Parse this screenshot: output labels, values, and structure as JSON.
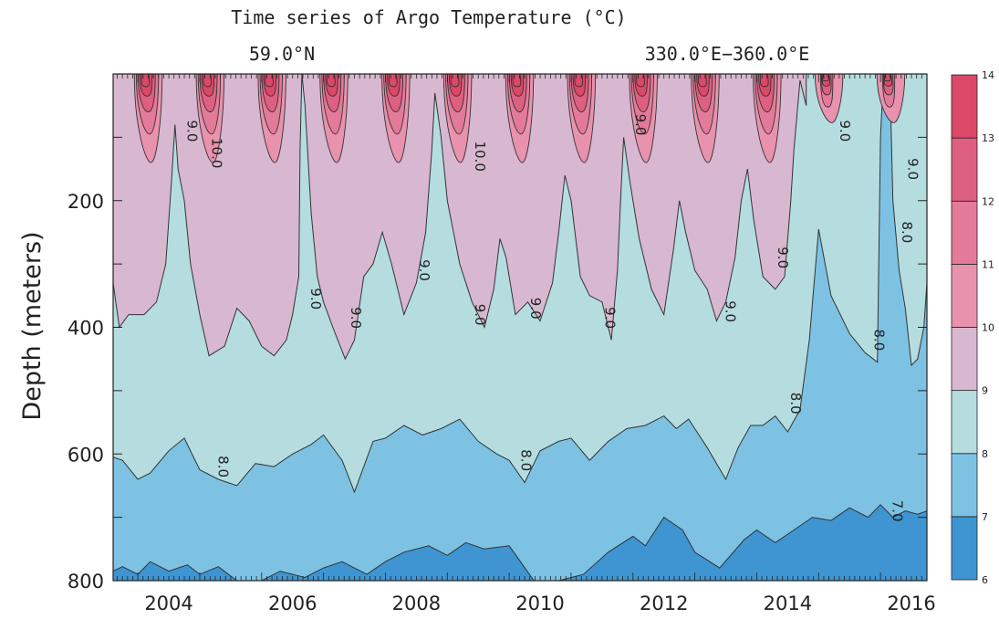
{
  "chart_data": {
    "type": "heatmap",
    "title": "Time series of Argo Temperature (°C)",
    "subtitle_left": "59.0°N",
    "subtitle_right": "330.0°E−360.0°E",
    "ylabel": "Depth (meters)",
    "xlabel": "",
    "xlim": [
      2003.6,
      2016.75
    ],
    "ylim": [
      800,
      0
    ],
    "y_inverted": true,
    "x_ticks": [
      "2004",
      "2006",
      "2008",
      "2010",
      "2012",
      "2014",
      "2016"
    ],
    "y_ticks": [
      "200",
      "400",
      "600",
      "800"
    ],
    "colorbar": {
      "levels": [
        6,
        7,
        8,
        9,
        10,
        11,
        12,
        13,
        14
      ],
      "labels": [
        "6",
        "7",
        "8",
        "9",
        "10",
        "11",
        "12",
        "13",
        "14"
      ],
      "colors": [
        "#3e95d1",
        "#7dc2e3",
        "#b5dde0",
        "#d7b8d0",
        "#e892ad",
        "#e37a99",
        "#df5f81",
        "#db4868"
      ]
    },
    "boundaries": {
      "deep_7C": [
        [
          2003.6,
          785
        ],
        [
          2003.75,
          778
        ],
        [
          2004.0,
          790
        ],
        [
          2004.2,
          770
        ],
        [
          2004.5,
          785
        ],
        [
          2004.8,
          775
        ],
        [
          2005.0,
          790
        ],
        [
          2005.3,
          778
        ],
        [
          2005.6,
          800
        ],
        [
          2006.0,
          800
        ],
        [
          2006.3,
          785
        ],
        [
          2006.7,
          795
        ],
        [
          2007.0,
          780
        ],
        [
          2007.3,
          770
        ],
        [
          2007.7,
          790
        ],
        [
          2008.0,
          770
        ],
        [
          2008.3,
          755
        ],
        [
          2008.7,
          745
        ],
        [
          2009.0,
          760
        ],
        [
          2009.3,
          740
        ],
        [
          2009.6,
          750
        ],
        [
          2010.0,
          745
        ],
        [
          2010.4,
          800
        ],
        [
          2010.8,
          800
        ],
        [
          2011.2,
          790
        ],
        [
          2011.6,
          755
        ],
        [
          2012.0,
          730
        ],
        [
          2012.2,
          745
        ],
        [
          2012.5,
          700
        ],
        [
          2012.8,
          720
        ],
        [
          2013.0,
          755
        ],
        [
          2013.4,
          780
        ],
        [
          2013.8,
          735
        ],
        [
          2014.0,
          720
        ],
        [
          2014.3,
          740
        ],
        [
          2014.6,
          720
        ],
        [
          2014.9,
          700
        ],
        [
          2015.2,
          705
        ],
        [
          2015.5,
          685
        ],
        [
          2015.8,
          700
        ],
        [
          2016.0,
          680
        ],
        [
          2016.2,
          700
        ],
        [
          2016.4,
          690
        ],
        [
          2016.6,
          695
        ],
        [
          2016.75,
          690
        ]
      ],
      "iso_8C": [
        [
          2003.6,
          605
        ],
        [
          2003.75,
          610
        ],
        [
          2004.0,
          640
        ],
        [
          2004.2,
          630
        ],
        [
          2004.5,
          595
        ],
        [
          2004.75,
          575
        ],
        [
          2005.0,
          625
        ],
        [
          2005.3,
          640
        ],
        [
          2005.6,
          650
        ],
        [
          2005.9,
          615
        ],
        [
          2006.2,
          620
        ],
        [
          2006.5,
          600
        ],
        [
          2006.8,
          585
        ],
        [
          2007.0,
          570
        ],
        [
          2007.3,
          610
        ],
        [
          2007.5,
          660
        ],
        [
          2007.8,
          580
        ],
        [
          2008.0,
          575
        ],
        [
          2008.3,
          555
        ],
        [
          2008.6,
          570
        ],
        [
          2008.9,
          560
        ],
        [
          2009.2,
          545
        ],
        [
          2009.5,
          580
        ],
        [
          2009.8,
          600
        ],
        [
          2010.0,
          610
        ],
        [
          2010.25,
          645
        ],
        [
          2010.5,
          595
        ],
        [
          2010.8,
          580
        ],
        [
          2011.0,
          575
        ],
        [
          2011.3,
          610
        ],
        [
          2011.6,
          580
        ],
        [
          2011.9,
          560
        ],
        [
          2012.2,
          555
        ],
        [
          2012.5,
          540
        ],
        [
          2012.7,
          560
        ],
        [
          2012.9,
          545
        ],
        [
          2013.2,
          590
        ],
        [
          2013.5,
          640
        ],
        [
          2013.7,
          590
        ],
        [
          2013.9,
          555
        ],
        [
          2014.1,
          555
        ],
        [
          2014.3,
          540
        ],
        [
          2014.5,
          565
        ],
        [
          2014.7,
          530
        ],
        [
          2014.85,
          420
        ],
        [
          2015.0,
          245
        ],
        [
          2015.2,
          350
        ],
        [
          2015.5,
          410
        ],
        [
          2015.75,
          440
        ],
        [
          2015.95,
          455
        ],
        [
          2016.0,
          100
        ],
        [
          2016.05,
          0
        ],
        [
          2016.15,
          0
        ],
        [
          2016.2,
          200
        ],
        [
          2016.3,
          310
        ],
        [
          2016.4,
          370
        ],
        [
          2016.5,
          460
        ],
        [
          2016.6,
          450
        ],
        [
          2016.7,
          400
        ],
        [
          2016.75,
          330
        ]
      ],
      "iso_9C": [
        [
          2003.6,
          330
        ],
        [
          2003.7,
          400
        ],
        [
          2003.85,
          380
        ],
        [
          2004.1,
          380
        ],
        [
          2004.3,
          360
        ],
        [
          2004.45,
          300
        ],
        [
          2004.55,
          160
        ],
        [
          2004.6,
          80
        ],
        [
          2004.65,
          150
        ],
        [
          2004.75,
          200
        ],
        [
          2004.85,
          300
        ],
        [
          2005.0,
          380
        ],
        [
          2005.15,
          445
        ],
        [
          2005.4,
          430
        ],
        [
          2005.6,
          370
        ],
        [
          2005.8,
          390
        ],
        [
          2006.0,
          430
        ],
        [
          2006.2,
          445
        ],
        [
          2006.4,
          420
        ],
        [
          2006.5,
          380
        ],
        [
          2006.6,
          320
        ],
        [
          2006.62,
          120
        ],
        [
          2006.65,
          0
        ],
        [
          2006.7,
          50
        ],
        [
          2006.8,
          220
        ],
        [
          2006.9,
          320
        ],
        [
          2007.0,
          360
        ],
        [
          2007.15,
          400
        ],
        [
          2007.35,
          450
        ],
        [
          2007.5,
          420
        ],
        [
          2007.65,
          320
        ],
        [
          2007.8,
          300
        ],
        [
          2007.95,
          250
        ],
        [
          2008.1,
          300
        ],
        [
          2008.3,
          380
        ],
        [
          2008.5,
          330
        ],
        [
          2008.65,
          250
        ],
        [
          2008.75,
          120
        ],
        [
          2008.8,
          30
        ],
        [
          2008.9,
          100
        ],
        [
          2009.0,
          200
        ],
        [
          2009.2,
          300
        ],
        [
          2009.4,
          360
        ],
        [
          2009.6,
          400
        ],
        [
          2009.75,
          340
        ],
        [
          2009.85,
          260
        ],
        [
          2009.95,
          290
        ],
        [
          2010.1,
          380
        ],
        [
          2010.3,
          360
        ],
        [
          2010.5,
          390
        ],
        [
          2010.7,
          330
        ],
        [
          2010.8,
          250
        ],
        [
          2010.9,
          160
        ],
        [
          2011.0,
          200
        ],
        [
          2011.15,
          320
        ],
        [
          2011.3,
          350
        ],
        [
          2011.5,
          360
        ],
        [
          2011.65,
          420
        ],
        [
          2011.75,
          310
        ],
        [
          2011.8,
          200
        ],
        [
          2011.85,
          100
        ],
        [
          2011.95,
          170
        ],
        [
          2012.1,
          260
        ],
        [
          2012.3,
          340
        ],
        [
          2012.5,
          380
        ],
        [
          2012.65,
          280
        ],
        [
          2012.75,
          200
        ],
        [
          2012.85,
          250
        ],
        [
          2013.0,
          310
        ],
        [
          2013.2,
          340
        ],
        [
          2013.35,
          390
        ],
        [
          2013.5,
          360
        ],
        [
          2013.65,
          290
        ],
        [
          2013.75,
          200
        ],
        [
          2013.85,
          150
        ],
        [
          2013.95,
          230
        ],
        [
          2014.1,
          320
        ],
        [
          2014.3,
          340
        ],
        [
          2014.45,
          320
        ],
        [
          2014.55,
          200
        ],
        [
          2014.6,
          120
        ],
        [
          2014.7,
          10
        ],
        [
          2014.8,
          50
        ]
      ]
    },
    "labels": [
      {
        "text": "9.0",
        "x": 2004.8,
        "y": 90
      },
      {
        "text": "10.0",
        "x": 2005.2,
        "y": 125
      },
      {
        "text": "9.0",
        "x": 2006.8,
        "y": 355
      },
      {
        "text": "9.0",
        "x": 2007.45,
        "y": 385
      },
      {
        "text": "9.0",
        "x": 2008.55,
        "y": 310
      },
      {
        "text": "10.0",
        "x": 2009.45,
        "y": 130
      },
      {
        "text": "9.0",
        "x": 2009.45,
        "y": 380
      },
      {
        "text": "9.0",
        "x": 2010.35,
        "y": 370
      },
      {
        "text": "9.0",
        "x": 2011.55,
        "y": 385
      },
      {
        "text": "9.0",
        "x": 2012.05,
        "y": 80
      },
      {
        "text": "9.0",
        "x": 2013.5,
        "y": 375
      },
      {
        "text": "9.0",
        "x": 2014.35,
        "y": 290
      },
      {
        "text": "9.0",
        "x": 2015.35,
        "y": 90
      },
      {
        "text": "9.0",
        "x": 2016.45,
        "y": 150
      },
      {
        "text": "8.0",
        "x": 2016.35,
        "y": 250
      },
      {
        "text": "8.0",
        "x": 2015.9,
        "y": 420
      },
      {
        "text": "8.0",
        "x": 2014.55,
        "y": 520
      },
      {
        "text": "8.0",
        "x": 2005.3,
        "y": 620
      },
      {
        "text": "8.0",
        "x": 2010.2,
        "y": 610
      },
      {
        "text": "7.0",
        "x": 2016.2,
        "y": 690
      }
    ]
  }
}
